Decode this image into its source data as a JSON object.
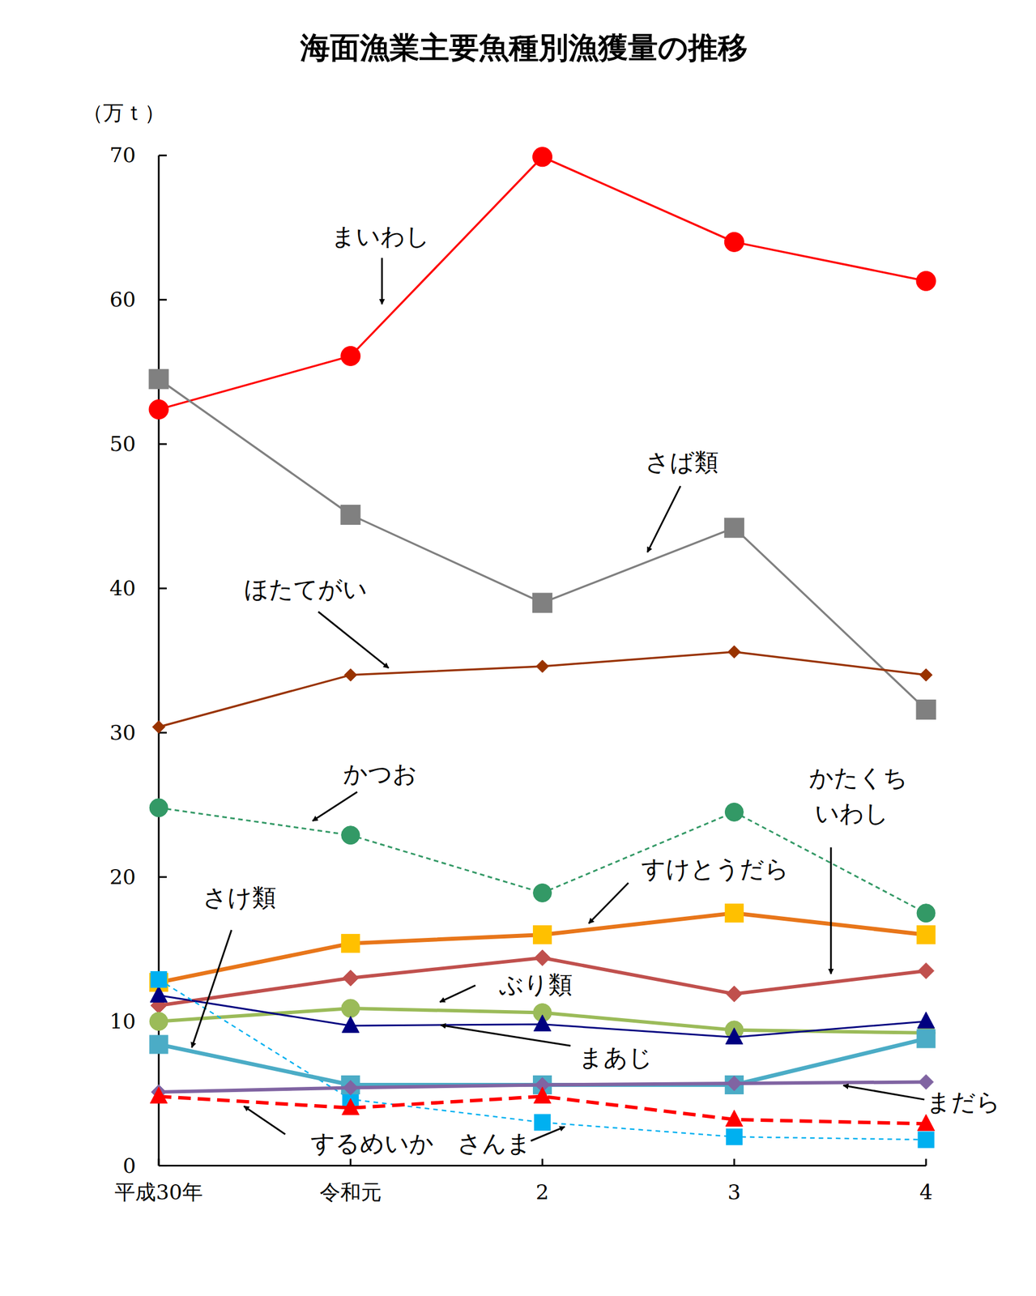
{
  "chart_data": {
    "type": "line",
    "title": "海面漁業主要魚種別漁獲量の推移",
    "y_label": "（万ｔ）",
    "categories": [
      "平成30年",
      "令和元",
      "2",
      "3",
      "4"
    ],
    "ylim": [
      0,
      70
    ],
    "yticks": [
      0,
      10,
      20,
      30,
      40,
      50,
      60,
      70
    ],
    "grid": false,
    "series": [
      {
        "name": "まいわし",
        "color": "#ff0000",
        "marker": "circle",
        "line_style": "solid",
        "values": [
          52.4,
          56.1,
          69.9,
          64.0,
          61.3
        ]
      },
      {
        "name": "さば類",
        "color": "#808080",
        "marker": "square",
        "line_style": "solid",
        "values": [
          54.5,
          45.1,
          39.0,
          44.2,
          31.6
        ]
      },
      {
        "name": "ほたてがい",
        "color": "#993300",
        "marker": "diamond",
        "line_style": "solid",
        "values": [
          30.4,
          34.0,
          34.6,
          35.6,
          34.0
        ]
      },
      {
        "name": "かつお",
        "color": "#339966",
        "marker": "circle",
        "line_style": "dashed",
        "values": [
          24.8,
          22.9,
          18.9,
          24.5,
          17.5
        ]
      },
      {
        "name": "すけとうだら",
        "color": "#e8761a",
        "marker": "square",
        "line_style": "solid",
        "values": [
          12.7,
          15.4,
          16.0,
          17.5,
          16.0
        ]
      },
      {
        "name": "かたくちいわし",
        "color": "#c0504d",
        "marker": "diamond",
        "line_style": "solid",
        "values": [
          11.1,
          13.0,
          14.4,
          11.9,
          13.5
        ]
      },
      {
        "name": "ぶり類",
        "color": "#9bbb59",
        "marker": "circle",
        "line_style": "solid",
        "values": [
          10.0,
          10.9,
          10.6,
          9.4,
          9.2
        ]
      },
      {
        "name": "まあじ",
        "color": "#000080",
        "marker": "triangle",
        "line_style": "solid",
        "values": [
          11.8,
          9.7,
          9.8,
          8.9,
          10.0
        ]
      },
      {
        "name": "さんま",
        "color": "#00b0f0",
        "marker": "square",
        "line_style": "dashed",
        "values": [
          12.9,
          4.6,
          3.0,
          2.0,
          1.8
        ]
      },
      {
        "name": "さけ類",
        "color": "#4bacc6",
        "marker": "square",
        "line_style": "solid",
        "values": [
          8.4,
          5.6,
          5.6,
          5.6,
          8.8
        ]
      },
      {
        "name": "まだら",
        "color": "#8064a2",
        "marker": "diamond",
        "line_style": "solid",
        "values": [
          5.1,
          5.4,
          5.6,
          5.7,
          5.8
        ]
      },
      {
        "name": "するめいか",
        "color": "#ff0000",
        "marker": "triangle",
        "line_style": "dashed",
        "values": [
          4.8,
          4.0,
          4.8,
          3.2,
          2.9
        ]
      }
    ]
  }
}
